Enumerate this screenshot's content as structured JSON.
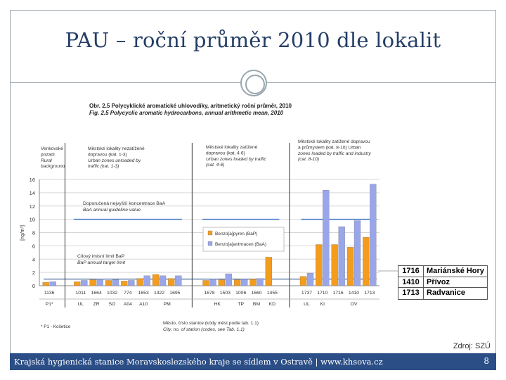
{
  "slide": {
    "title": "PAU – roční průměr 2010 dle lokalit",
    "source": "Zdroj: SZÚ",
    "footer": "Krajská hygienická stanice Moravskoslezského kraje se sídlem v Ostravě | www.khsova.cz",
    "page_number": "8"
  },
  "legend_table": [
    {
      "code": "1716",
      "name": "Mariánské Hory"
    },
    {
      "code": "1410",
      "name": "Přívoz"
    },
    {
      "code": "1713",
      "name": "Radvanice"
    }
  ],
  "chart_data": {
    "type": "bar",
    "title": "Obr. 2.5   Polycyklické aromatické uhlovodíky, aritmetický roční průměr, 2010",
    "subtitle": "Fig. 2.5  Polycyclic aromatic hydrocarbons, annual arithmetic mean, 2010",
    "ylabel": "[ng/m³]",
    "ylim": [
      0,
      16
    ],
    "yticks": [
      0,
      2,
      4,
      6,
      8,
      10,
      12,
      14,
      16
    ],
    "xlabel": "Město, číslo stanice (kódy měst podle tab. 1.1)",
    "xlabel_en": "City, no. of station (codes, see Tab. 1.1)",
    "footnote": "* P1 - Košetice",
    "categories": [
      "1136",
      "1011",
      "1664",
      "1032",
      "774",
      "1653",
      "1322",
      "1695",
      "1678",
      "1503",
      "1006",
      "1660",
      "1455",
      "1737",
      "1710",
      "1716",
      "1410",
      "1713"
    ],
    "city_codes": [
      {
        "label": "P1*",
        "span": [
          0,
          0
        ]
      },
      {
        "label": "UL",
        "span": [
          1,
          1
        ]
      },
      {
        "label": "ZR",
        "span": [
          2,
          2
        ]
      },
      {
        "label": "SO",
        "span": [
          3,
          3
        ]
      },
      {
        "label": "A04",
        "span": [
          4,
          4
        ]
      },
      {
        "label": "A10",
        "span": [
          5,
          5
        ]
      },
      {
        "label": "PM",
        "span": [
          6,
          7
        ]
      },
      {
        "label": "HK",
        "span": [
          8,
          9
        ]
      },
      {
        "label": "TP",
        "span": [
          10,
          10
        ]
      },
      {
        "label": "BM",
        "span": [
          11,
          11
        ]
      },
      {
        "label": "KD",
        "span": [
          12,
          12
        ]
      },
      {
        "label": "UL",
        "span": [
          13,
          13
        ]
      },
      {
        "label": "KI",
        "span": [
          14,
          14
        ]
      },
      {
        "label": "OV",
        "span": [
          15,
          17
        ]
      }
    ],
    "series": [
      {
        "name": "Benzo[a]pyren (BaP)",
        "color": "#f39c1e",
        "values": [
          0.5,
          0.6,
          0.9,
          0.8,
          0.7,
          1.1,
          1.7,
          1.1,
          0.8,
          0.9,
          0.9,
          1.0,
          4.3,
          1.4,
          6.2,
          6.2,
          5.8,
          7.3
        ]
      },
      {
        "name": "Benzo[a]anthracen (BaA)",
        "color": "#9aa6ea",
        "values": [
          0.6,
          0.8,
          1.0,
          0.9,
          0.8,
          1.5,
          1.5,
          1.5,
          1.0,
          1.8,
          1.0,
          1.1,
          0.0,
          1.9,
          14.4,
          8.9,
          9.8,
          15.3
        ]
      }
    ],
    "groups": [
      {
        "cs": [
          "Venkovské",
          "pozadí",
          "Rural",
          "background"
        ],
        "range": [
          0,
          0
        ]
      },
      {
        "cs": [
          "Městské lokality nezatížené",
          "dopravou (kat. 1-3)",
          "Urban zones unloaded by",
          "traffic (kat. 1-3)"
        ],
        "range": [
          1,
          7
        ]
      },
      {
        "cs": [
          "Městské lokality zatížené",
          "dopravou (kat. 4-6)",
          "Urban zones loaded by traffic",
          "(cat. 4-6)"
        ],
        "range": [
          8,
          12
        ]
      },
      {
        "cs": [
          "Městské lokality zatížené dopravou",
          "a průmyslem (kat. 8-10) Urban",
          "zones loaded by traffic and industry",
          "(cat. 8-10)"
        ],
        "range": [
          13,
          17
        ]
      }
    ],
    "reference_lines": [
      {
        "value": 10,
        "label_cs": "Doporučená nejvyšší koncentrace BaA",
        "label_en": "BaA annual guideline value",
        "color": "#3f73c4"
      },
      {
        "value": 1,
        "label_cs": "Cílový imisní limit BaP",
        "label_en": "BaP annual target limit",
        "color": "#2b4e86"
      }
    ],
    "grid": true,
    "legend_position": "center-right"
  }
}
